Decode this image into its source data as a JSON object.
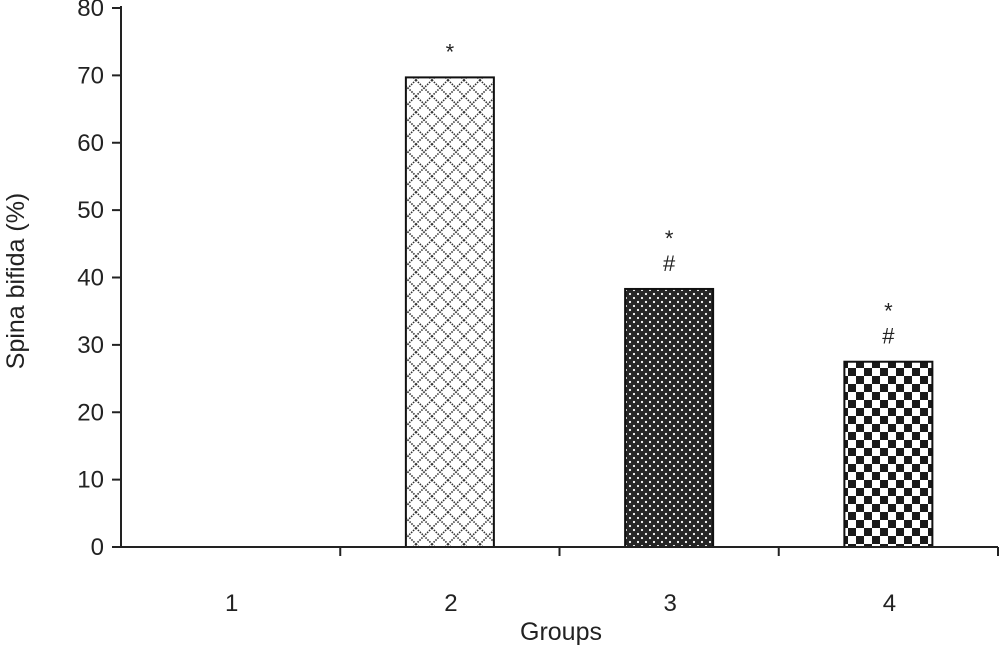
{
  "chart_data": {
    "type": "bar",
    "title": "",
    "xlabel": "Groups",
    "ylabel": "Spina bifida (%)",
    "categories": [
      "1",
      "2",
      "3",
      "4"
    ],
    "values": [
      0,
      69.7,
      38.3,
      27.5
    ],
    "ylim": [
      0,
      80
    ],
    "yticks": [
      "0",
      "10",
      "20",
      "30",
      "40",
      "50",
      "60",
      "70",
      "80"
    ],
    "grid": false,
    "legend": "none",
    "bar_styles": [
      "none",
      "crosshatch-diamond",
      "dark-dotted",
      "checkerboard"
    ],
    "annotations": [
      {
        "category": "2",
        "labels": [
          "*"
        ]
      },
      {
        "category": "3",
        "labels": [
          "*",
          "#"
        ]
      },
      {
        "category": "4",
        "labels": [
          "*",
          "#"
        ]
      }
    ],
    "colors": {
      "axis": "#222222",
      "bar_outline": "#111111",
      "dark_fill": "#222222"
    }
  }
}
